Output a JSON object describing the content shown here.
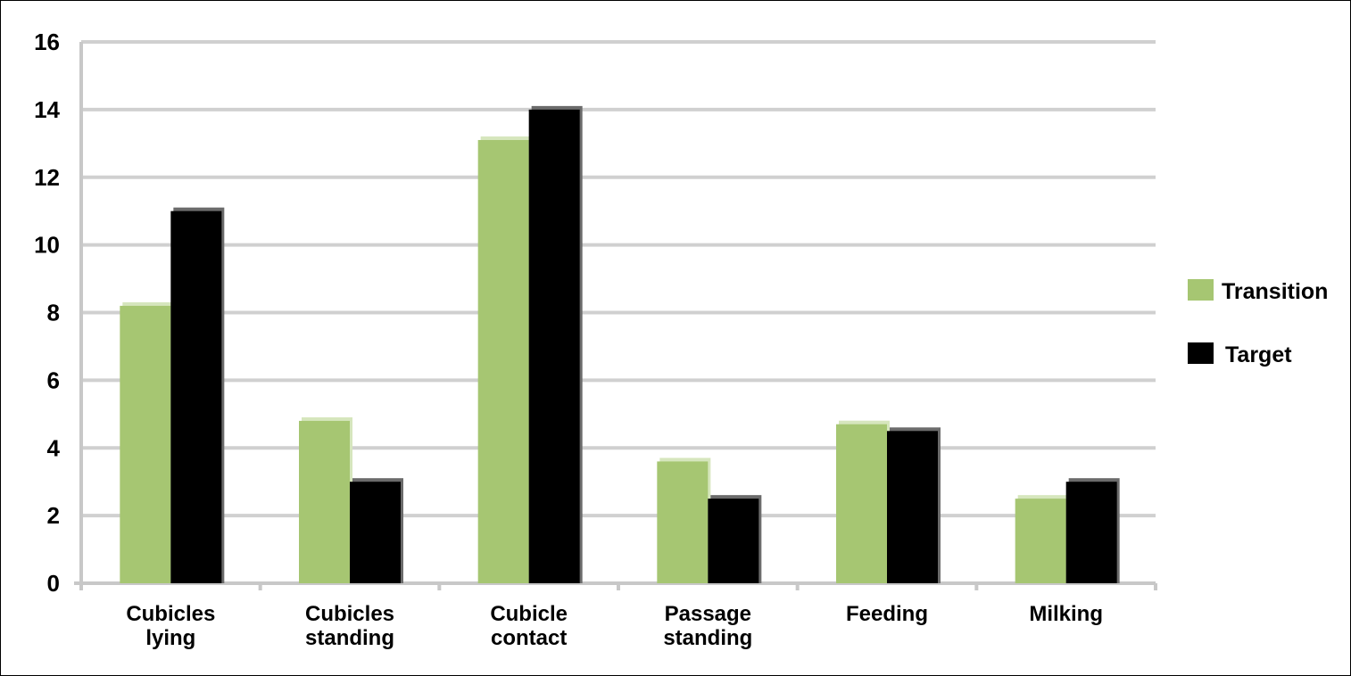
{
  "chart_data": {
    "type": "bar",
    "title": "",
    "xlabel": "",
    "ylabel": "",
    "categories": [
      [
        "Cubicles",
        "lying"
      ],
      [
        "Cubicles",
        "standing"
      ],
      [
        "Cubicle",
        "contact"
      ],
      [
        "Passage",
        "standing"
      ],
      [
        "Feeding"
      ],
      [
        "Milking"
      ]
    ],
    "series": [
      {
        "name": "Transition",
        "color": "#a6c672",
        "values": [
          8.2,
          4.8,
          13.1,
          3.6,
          4.7,
          2.5
        ]
      },
      {
        "name": "Target",
        "color": "#000000",
        "values": [
          11,
          3,
          14,
          2.5,
          4.5,
          3
        ]
      }
    ],
    "ylim": [
      0,
      16
    ],
    "yticks": [
      0,
      2,
      4,
      6,
      8,
      10,
      12,
      14,
      16
    ],
    "grid": true,
    "legend": "right"
  }
}
